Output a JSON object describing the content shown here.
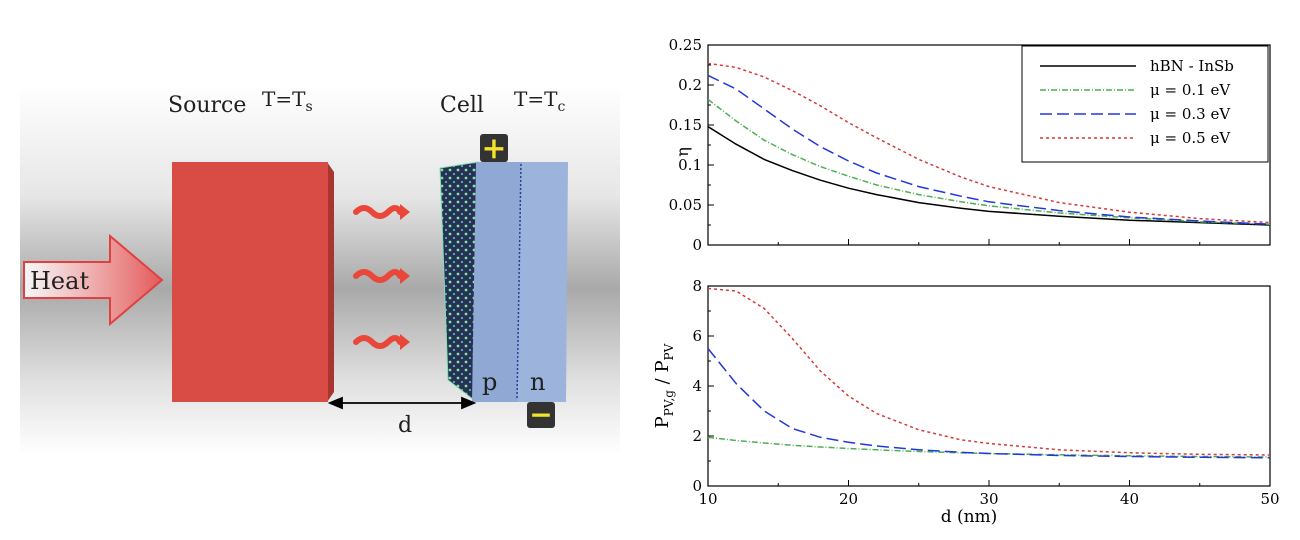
{
  "diagram": {
    "source_label": "Source",
    "source_temp": "T=T",
    "source_temp_sub": "s",
    "cell_label": "Cell",
    "cell_temp": "T=T",
    "cell_temp_sub": "c",
    "heat_label": "Heat",
    "p_label": "p",
    "n_label": "n",
    "plus_label": "+",
    "minus_label": "−",
    "distance_label": "d",
    "colors": {
      "source": "#d94b45",
      "cell": "#8fa8d4",
      "heat_arrow": "#e04040",
      "waves": "#e8473a",
      "terminal_bg": "#333333",
      "terminal_fg": "#f2e22b"
    }
  },
  "chart_data": [
    {
      "type": "line",
      "panel": "top",
      "ylabel": "η",
      "xlim": [
        10,
        50
      ],
      "ylim": [
        0,
        0.25
      ],
      "yticks": [
        0,
        0.05,
        0.1,
        0.15,
        0.2,
        0.25
      ],
      "ytick_labels": [
        "0",
        "0.05",
        "0.1",
        "0.15",
        "0.2",
        "0.25"
      ],
      "x": [
        10,
        12,
        14,
        16,
        18,
        20,
        22,
        25,
        28,
        30,
        35,
        40,
        45,
        50
      ],
      "series": [
        {
          "name": "hBN - InSb",
          "color": "#000000",
          "dash": "",
          "values": [
            0.148,
            0.126,
            0.107,
            0.093,
            0.081,
            0.071,
            0.063,
            0.053,
            0.046,
            0.042,
            0.036,
            0.031,
            0.028,
            0.025
          ]
        },
        {
          "name": "μ = 0.1 eV",
          "color": "#4caf50",
          "dash": "6 2 1 2",
          "values": [
            0.182,
            0.155,
            0.131,
            0.113,
            0.098,
            0.086,
            0.075,
            0.063,
            0.054,
            0.049,
            0.04,
            0.034,
            0.029,
            0.026
          ]
        },
        {
          "name": "μ = 0.3 eV",
          "color": "#2238d8",
          "dash": "12 5",
          "values": [
            0.212,
            0.195,
            0.17,
            0.145,
            0.123,
            0.105,
            0.09,
            0.073,
            0.061,
            0.054,
            0.043,
            0.035,
            0.03,
            0.026
          ]
        },
        {
          "name": "μ = 0.5 eV",
          "color": "#d63a3a",
          "dash": "3 3",
          "values": [
            0.227,
            0.222,
            0.21,
            0.193,
            0.174,
            0.153,
            0.134,
            0.107,
            0.085,
            0.073,
            0.053,
            0.041,
            0.033,
            0.028
          ]
        }
      ],
      "legend": {
        "position": "top-right"
      }
    },
    {
      "type": "line",
      "panel": "bottom",
      "ylabel": "P",
      "ylabel_sub1": "PV,g",
      "ylabel_mid": " / P",
      "ylabel_sub2": "PV",
      "xlabel": "d (nm)",
      "xlim": [
        10,
        50
      ],
      "ylim": [
        0,
        8
      ],
      "yticks": [
        0,
        2,
        4,
        6,
        8
      ],
      "ytick_labels": [
        "0",
        "2",
        "4",
        "6",
        "8"
      ],
      "xticks": [
        10,
        20,
        30,
        40,
        50
      ],
      "xtick_labels": [
        "10",
        "20",
        "30",
        "40",
        "50"
      ],
      "x": [
        10,
        12,
        14,
        16,
        18,
        20,
        22,
        25,
        28,
        30,
        35,
        40,
        45,
        50
      ],
      "series": [
        {
          "name": "μ = 0.1 eV",
          "color": "#4caf50",
          "dash": "6 2 1 2",
          "values": [
            1.95,
            1.82,
            1.72,
            1.63,
            1.56,
            1.5,
            1.45,
            1.38,
            1.33,
            1.3,
            1.25,
            1.21,
            1.18,
            1.16
          ]
        },
        {
          "name": "μ = 0.3 eV",
          "color": "#2238d8",
          "dash": "12 5",
          "values": [
            5.5,
            4.1,
            3.0,
            2.3,
            1.95,
            1.75,
            1.6,
            1.45,
            1.35,
            1.3,
            1.22,
            1.18,
            1.15,
            1.13
          ]
        },
        {
          "name": "μ = 0.5 eV",
          "color": "#d63a3a",
          "dash": "3 3",
          "values": [
            7.9,
            7.8,
            7.1,
            5.9,
            4.6,
            3.6,
            2.9,
            2.25,
            1.85,
            1.7,
            1.45,
            1.33,
            1.27,
            1.24
          ]
        }
      ]
    }
  ]
}
